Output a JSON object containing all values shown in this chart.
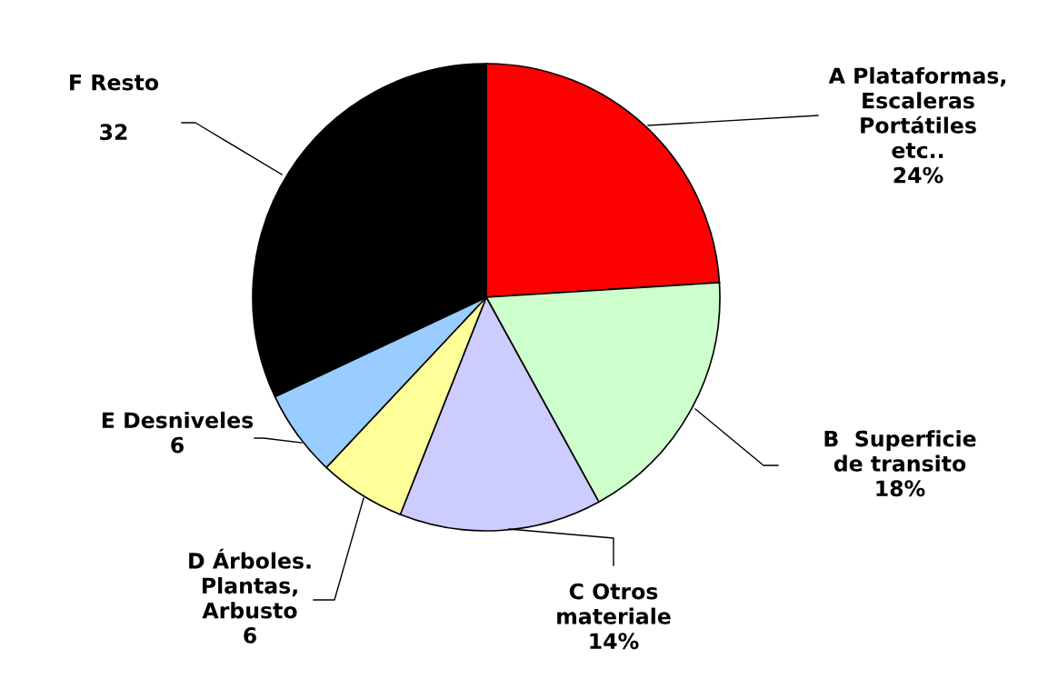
{
  "chart_data": {
    "type": "pie",
    "categories": [
      "A Plataformas,\nEscaleras\nPortátiles\netc..",
      "B  Superficie\nde transito",
      "C Otros\nmateriale",
      "D Árboles.\nPlantas,\nArbusto",
      "E Desniveles",
      "F Resto"
    ],
    "values": [
      24,
      18,
      14,
      6,
      6,
      32
    ],
    "value_labels": [
      "24%",
      "18%",
      "14%",
      "6",
      "6",
      "32"
    ],
    "colors": [
      "#ff0000",
      "#ccffcc",
      "#ccccff",
      "#ffff99",
      "#99ccff",
      "#000000"
    ],
    "legend": false
  }
}
